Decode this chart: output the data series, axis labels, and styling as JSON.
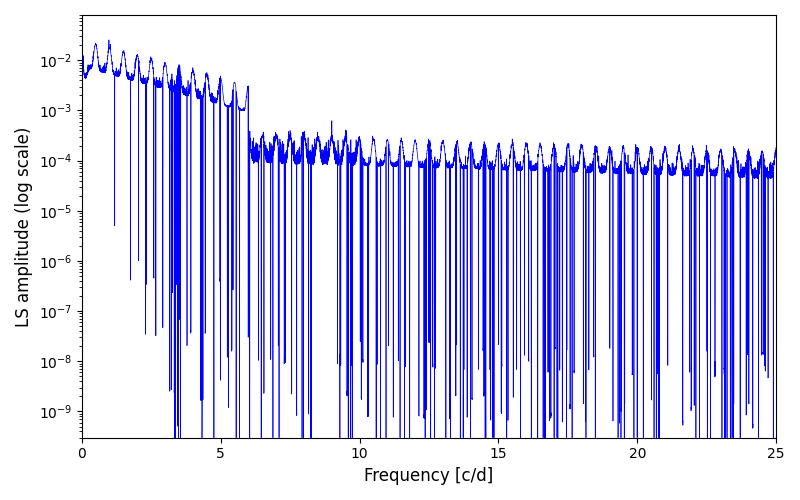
{
  "xlabel": "Frequency [c/d]",
  "ylabel": "LS amplitude (log scale)",
  "xlim": [
    0,
    25
  ],
  "ylim_log": [
    3e-10,
    0.08
  ],
  "line_color": "blue",
  "line_width": 0.5,
  "figsize": [
    8.0,
    5.0
  ],
  "dpi": 100,
  "background_color": "#ffffff",
  "seed": 12345,
  "n_points": 10000,
  "freq_max": 25.0
}
